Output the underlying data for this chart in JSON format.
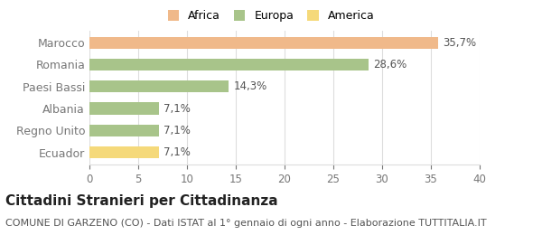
{
  "categories": [
    "Ecuador",
    "Regno Unito",
    "Albania",
    "Paesi Bassi",
    "Romania",
    "Marocco"
  ],
  "values": [
    7.1,
    7.1,
    7.1,
    14.3,
    28.6,
    35.7
  ],
  "labels": [
    "7,1%",
    "7,1%",
    "7,1%",
    "14,3%",
    "28,6%",
    "35,7%"
  ],
  "colors": [
    "#f5d97a",
    "#a8c48a",
    "#a8c48a",
    "#a8c48a",
    "#a8c48a",
    "#f0b98a"
  ],
  "legend": [
    {
      "label": "Africa",
      "color": "#f0b98a"
    },
    {
      "label": "Europa",
      "color": "#a8c48a"
    },
    {
      "label": "America",
      "color": "#f5d97a"
    }
  ],
  "xlim": [
    0,
    40
  ],
  "xticks": [
    0,
    5,
    10,
    15,
    20,
    25,
    30,
    35,
    40
  ],
  "title": "Cittadini Stranieri per Cittadinanza",
  "subtitle": "COMUNE DI GARZENO (CO) - Dati ISTAT al 1° gennaio di ogni anno - Elaborazione TUTTITALIA.IT",
  "background_color": "#ffffff",
  "grid_color": "#dddddd",
  "bar_height": 0.55,
  "label_fontsize": 8.5,
  "title_fontsize": 11,
  "subtitle_fontsize": 8
}
